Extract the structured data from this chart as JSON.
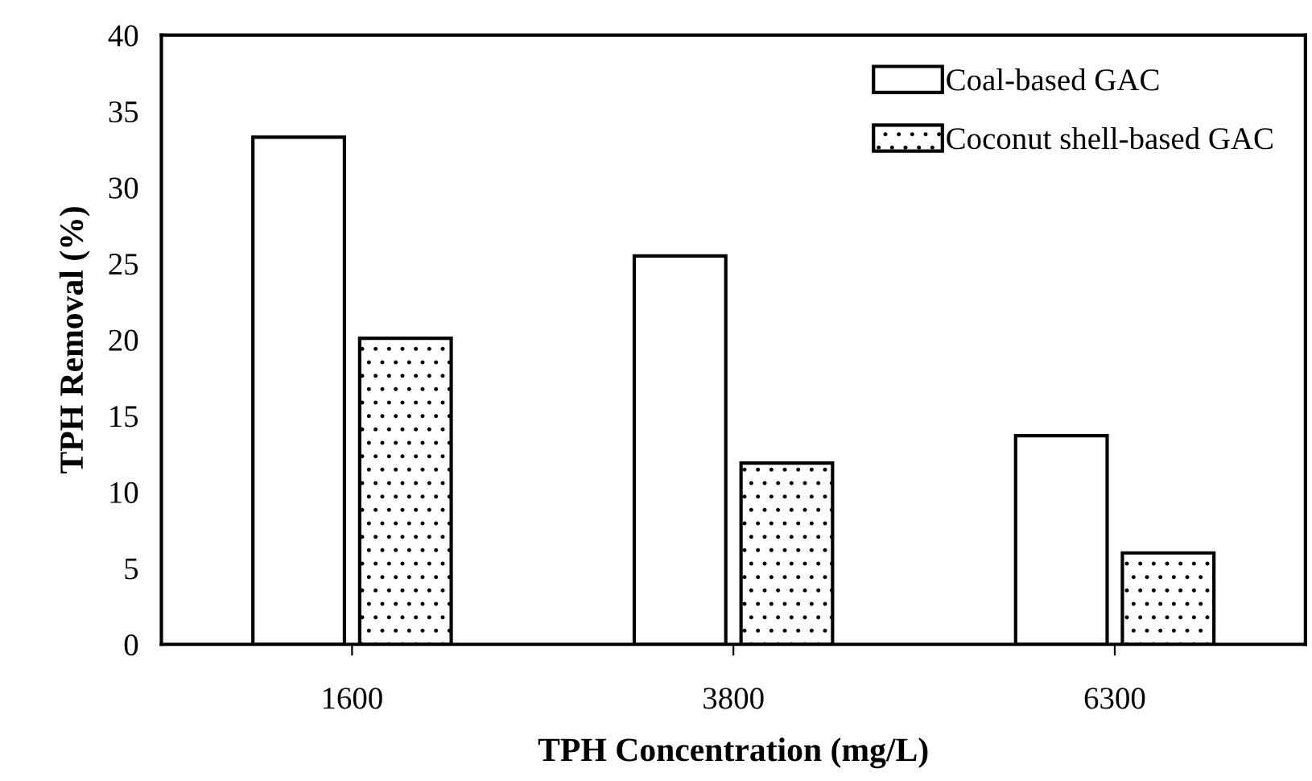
{
  "chart_data": {
    "type": "bar",
    "xlabel": "TPH Concentration (mg/L)",
    "ylabel": "TPH Removal (%)",
    "categories": [
      "1600",
      "3800",
      "6300"
    ],
    "series": [
      {
        "name": "Coal-based GAC",
        "color": "#ffffff",
        "values": [
          33.3,
          25.5,
          13.7
        ]
      },
      {
        "name": "Coconut shell-based GAC",
        "color": "#000000",
        "values": [
          20.1,
          11.9,
          6.0
        ]
      }
    ],
    "ylim": [
      0,
      40
    ],
    "yticks": [
      0,
      5,
      10,
      15,
      20,
      25,
      30,
      35,
      40
    ],
    "grid": false,
    "legend": "top right"
  }
}
